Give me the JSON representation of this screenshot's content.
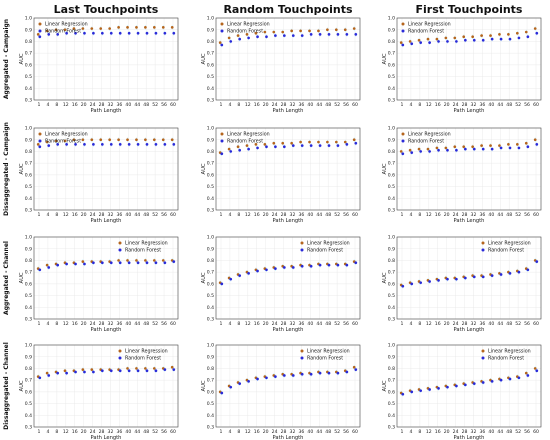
{
  "colors": {
    "linear_regression": "#b5651d",
    "random_forest": "#2a2ad8",
    "error_bar": "#bfefff"
  },
  "chart_data": {
    "type": "scatter",
    "columns": [
      "Last Touchpoints",
      "Random Touchpoints",
      "First Touchpoints"
    ],
    "rows": [
      "Aggregated - Campaign",
      "Dissaggregated - Campaign",
      "Aggregated - Channel",
      "Dissaggregated - Channel"
    ],
    "xlabel": "Path Length",
    "ylabel": "AUC",
    "x": [
      1,
      4,
      8,
      12,
      16,
      20,
      24,
      28,
      32,
      36,
      40,
      44,
      48,
      52,
      56,
      60
    ],
    "x_ticks": [
      "1",
      "4",
      "8",
      "12",
      "16",
      "20",
      "24",
      "28",
      "32",
      "36",
      "40",
      "44",
      "48",
      "52",
      "56",
      "60"
    ],
    "ylim": [
      0.3,
      1.0
    ],
    "y_ticks": [
      "0.3",
      "0.4",
      "0.5",
      "0.6",
      "0.7",
      "0.8",
      "0.9",
      "1.0"
    ],
    "legend": [
      "Linear Regression",
      "Random Forest"
    ],
    "legend_position": [
      "top-left",
      "top-left",
      "top-left",
      "top-left",
      "top-left",
      "top-left",
      "top-right",
      "top-right",
      "top-right",
      "top-right",
      "top-right",
      "top-right"
    ],
    "grid": true,
    "panels": [
      {
        "row": 0,
        "col": 0,
        "series": [
          {
            "name": "Linear Regression",
            "values": [
              0.86,
              0.89,
              0.9,
              0.9,
              0.91,
              0.91,
              0.91,
              0.91,
              0.91,
              0.92,
              0.92,
              0.92,
              0.92,
              0.92,
              0.92,
              0.92
            ]
          },
          {
            "name": "Random Forest",
            "values": [
              0.84,
              0.86,
              0.86,
              0.87,
              0.87,
              0.87,
              0.87,
              0.87,
              0.87,
              0.87,
              0.87,
              0.87,
              0.87,
              0.87,
              0.87,
              0.87
            ]
          }
        ]
      },
      {
        "row": 0,
        "col": 1,
        "series": [
          {
            "name": "Linear Regression",
            "values": [
              0.79,
              0.83,
              0.85,
              0.86,
              0.87,
              0.88,
              0.88,
              0.88,
              0.89,
              0.89,
              0.89,
              0.89,
              0.9,
              0.9,
              0.9,
              0.91
            ]
          },
          {
            "name": "Random Forest",
            "values": [
              0.77,
              0.8,
              0.82,
              0.83,
              0.84,
              0.84,
              0.85,
              0.85,
              0.85,
              0.85,
              0.86,
              0.86,
              0.86,
              0.86,
              0.86,
              0.86
            ]
          }
        ]
      },
      {
        "row": 0,
        "col": 2,
        "series": [
          {
            "name": "Linear Regression",
            "values": [
              0.79,
              0.8,
              0.81,
              0.82,
              0.82,
              0.83,
              0.83,
              0.84,
              0.84,
              0.85,
              0.85,
              0.86,
              0.86,
              0.87,
              0.88,
              0.91
            ]
          },
          {
            "name": "Random Forest",
            "values": [
              0.77,
              0.78,
              0.79,
              0.79,
              0.8,
              0.8,
              0.8,
              0.81,
              0.81,
              0.81,
              0.82,
              0.82,
              0.82,
              0.83,
              0.84,
              0.87
            ]
          }
        ]
      },
      {
        "row": 1,
        "col": 0,
        "series": [
          {
            "name": "Linear Regression",
            "values": [
              0.86,
              0.88,
              0.89,
              0.89,
              0.9,
              0.9,
              0.9,
              0.9,
              0.9,
              0.9,
              0.9,
              0.9,
              0.9,
              0.9,
              0.9,
              0.9
            ]
          },
          {
            "name": "Random Forest",
            "values": [
              0.84,
              0.85,
              0.86,
              0.86,
              0.86,
              0.86,
              0.86,
              0.86,
              0.86,
              0.86,
              0.86,
              0.86,
              0.86,
              0.86,
              0.86,
              0.86
            ]
          }
        ]
      },
      {
        "row": 1,
        "col": 1,
        "series": [
          {
            "name": "Linear Regression",
            "values": [
              0.79,
              0.82,
              0.84,
              0.85,
              0.86,
              0.86,
              0.87,
              0.87,
              0.87,
              0.88,
              0.88,
              0.88,
              0.88,
              0.88,
              0.88,
              0.9
            ]
          },
          {
            "name": "Random Forest",
            "values": [
              0.78,
              0.8,
              0.81,
              0.82,
              0.83,
              0.84,
              0.84,
              0.84,
              0.85,
              0.85,
              0.85,
              0.85,
              0.85,
              0.85,
              0.86,
              0.87
            ]
          }
        ]
      },
      {
        "row": 1,
        "col": 2,
        "series": [
          {
            "name": "Linear Regression",
            "values": [
              0.8,
              0.81,
              0.82,
              0.82,
              0.83,
              0.83,
              0.84,
              0.84,
              0.84,
              0.85,
              0.85,
              0.85,
              0.86,
              0.86,
              0.87,
              0.9
            ]
          },
          {
            "name": "Random Forest",
            "values": [
              0.78,
              0.79,
              0.8,
              0.8,
              0.81,
              0.81,
              0.81,
              0.82,
              0.82,
              0.82,
              0.82,
              0.83,
              0.83,
              0.83,
              0.84,
              0.86
            ]
          }
        ]
      },
      {
        "row": 2,
        "col": 0,
        "series": [
          {
            "name": "Linear Regression",
            "values": [
              0.73,
              0.76,
              0.77,
              0.78,
              0.78,
              0.79,
              0.79,
              0.79,
              0.79,
              0.8,
              0.8,
              0.8,
              0.8,
              0.8,
              0.8,
              0.8
            ]
          },
          {
            "name": "Random Forest",
            "values": [
              0.72,
              0.74,
              0.76,
              0.77,
              0.77,
              0.77,
              0.78,
              0.78,
              0.78,
              0.78,
              0.78,
              0.78,
              0.78,
              0.78,
              0.78,
              0.79
            ]
          }
        ]
      },
      {
        "row": 2,
        "col": 1,
        "series": [
          {
            "name": "Linear Regression",
            "values": [
              0.61,
              0.65,
              0.68,
              0.7,
              0.72,
              0.73,
              0.74,
              0.75,
              0.75,
              0.76,
              0.76,
              0.77,
              0.77,
              0.77,
              0.77,
              0.79
            ]
          },
          {
            "name": "Random Forest",
            "values": [
              0.6,
              0.64,
              0.67,
              0.69,
              0.71,
              0.72,
              0.73,
              0.74,
              0.74,
              0.75,
              0.75,
              0.76,
              0.76,
              0.76,
              0.76,
              0.78
            ]
          }
        ]
      },
      {
        "row": 2,
        "col": 2,
        "series": [
          {
            "name": "Linear Regression",
            "values": [
              0.59,
              0.61,
              0.62,
              0.63,
              0.64,
              0.65,
              0.65,
              0.66,
              0.67,
              0.67,
              0.68,
              0.69,
              0.7,
              0.71,
              0.73,
              0.8
            ]
          },
          {
            "name": "Random Forest",
            "values": [
              0.58,
              0.6,
              0.61,
              0.62,
              0.63,
              0.64,
              0.64,
              0.65,
              0.66,
              0.66,
              0.67,
              0.68,
              0.69,
              0.7,
              0.72,
              0.79
            ]
          }
        ]
      },
      {
        "row": 3,
        "col": 0,
        "series": [
          {
            "name": "Linear Regression",
            "values": [
              0.73,
              0.76,
              0.77,
              0.78,
              0.78,
              0.79,
              0.79,
              0.79,
              0.79,
              0.79,
              0.8,
              0.8,
              0.8,
              0.8,
              0.8,
              0.81
            ]
          },
          {
            "name": "Random Forest",
            "values": [
              0.72,
              0.74,
              0.76,
              0.76,
              0.77,
              0.77,
              0.77,
              0.78,
              0.78,
              0.78,
              0.78,
              0.78,
              0.78,
              0.78,
              0.79,
              0.79
            ]
          }
        ]
      },
      {
        "row": 3,
        "col": 1,
        "series": [
          {
            "name": "Linear Regression",
            "values": [
              0.6,
              0.65,
              0.68,
              0.7,
              0.72,
              0.73,
              0.74,
              0.75,
              0.75,
              0.76,
              0.76,
              0.77,
              0.77,
              0.77,
              0.78,
              0.81
            ]
          },
          {
            "name": "Random Forest",
            "values": [
              0.59,
              0.64,
              0.67,
              0.69,
              0.71,
              0.72,
              0.73,
              0.74,
              0.74,
              0.75,
              0.75,
              0.76,
              0.76,
              0.76,
              0.77,
              0.79
            ]
          }
        ]
      },
      {
        "row": 3,
        "col": 2,
        "series": [
          {
            "name": "Linear Regression",
            "values": [
              0.59,
              0.61,
              0.62,
              0.63,
              0.64,
              0.65,
              0.66,
              0.67,
              0.68,
              0.69,
              0.7,
              0.71,
              0.72,
              0.73,
              0.76,
              0.8
            ]
          },
          {
            "name": "Random Forest",
            "values": [
              0.58,
              0.6,
              0.61,
              0.62,
              0.63,
              0.64,
              0.65,
              0.66,
              0.67,
              0.68,
              0.69,
              0.7,
              0.71,
              0.72,
              0.74,
              0.78
            ]
          }
        ]
      }
    ]
  }
}
